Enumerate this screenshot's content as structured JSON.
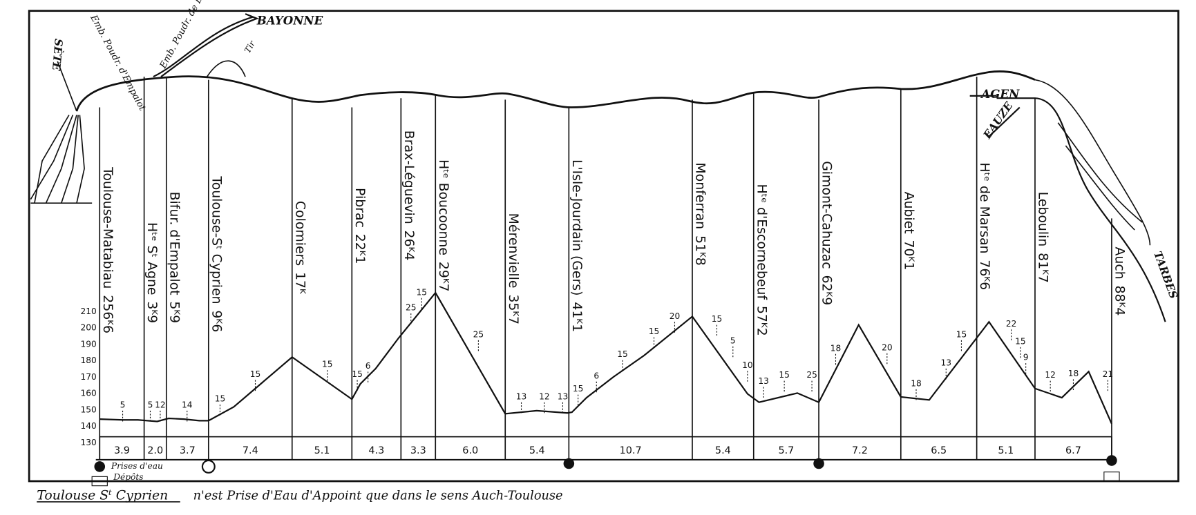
{
  "stations": [
    {
      "name": "Toulouse-Matabiau",
      "km": "256ᴷ6"
    },
    {
      "name": "Hᵗᵉ Sᵗ Agne",
      "km": "3ᴷ9"
    },
    {
      "name": "Bifur. d'Empalot",
      "km": "5ᴷ9"
    },
    {
      "name": "Toulouse-Sᵗ Cyprien",
      "km": "9ᴷ6"
    },
    {
      "name": "Colomiers",
      "km": "17ᴷ"
    },
    {
      "name": "Pibrac",
      "km": "22ᴷ1"
    },
    {
      "name": "Brax-Léguevin",
      "km": "26ᴷ4"
    },
    {
      "name": "Hᵗᵉ Boucoonne",
      "km": "29ᴷ7"
    },
    {
      "name": "Mérenvielle",
      "km": "35ᴷ7"
    },
    {
      "name": "L'Isle-Jourdain (Gers)",
      "km": "41ᴷ1"
    },
    {
      "name": "Monferran",
      "km": "51ᴷ8"
    },
    {
      "name": "Hᵗᵉ d'Escornebeuf",
      "km": "57ᴷ2"
    },
    {
      "name": "Gimont-Cahuzac",
      "km": "62ᴷ9"
    },
    {
      "name": "Aubiet",
      "km": "70ᴷ1"
    },
    {
      "name": "Hᵗᵉ de Marsan",
      "km": "76ᴷ6"
    },
    {
      "name": "Leboulin",
      "km": "81ᴷ7"
    },
    {
      "name": "Auch",
      "km": "88ᴷ4"
    }
  ],
  "distances": [
    "3.9",
    "2.0",
    "3.7",
    "7.4",
    "5.1",
    "4.3",
    "3.3",
    "6.0",
    "5.4",
    "10.7",
    "5.4",
    "5.7",
    "7.2",
    "6.5",
    "5.1",
    "6.7"
  ],
  "altitudes": [
    130,
    140,
    150,
    160,
    170,
    180,
    190,
    200,
    210
  ],
  "grades": [
    5,
    5,
    12,
    14,
    15,
    15,
    15,
    15,
    6,
    25,
    15,
    25,
    13,
    12,
    13,
    15,
    6,
    15,
    15,
    20,
    15,
    5,
    10,
    13,
    15,
    25,
    18,
    20,
    18,
    13,
    15,
    22,
    15,
    9,
    12,
    18,
    21
  ],
  "places": {
    "sete": "SÈTE",
    "bayonne": "BAYONNE",
    "agen": "AGEN",
    "eauze": "EAUZE",
    "tarbes": "TARBES",
    "empalot": "Emb. Poudr. d'Empalot",
    "braqueville": "Emb. Poudr. de Braqueville",
    "tir": "Tir"
  },
  "legend": {
    "water": "Prises d'eau",
    "depots": "Dépôts"
  },
  "footer": {
    "station": "Toulouse Sᵗ Cyprien",
    "note": "n'est Prise d'Eau d'Appoint que dans le sens Auch-Toulouse"
  }
}
